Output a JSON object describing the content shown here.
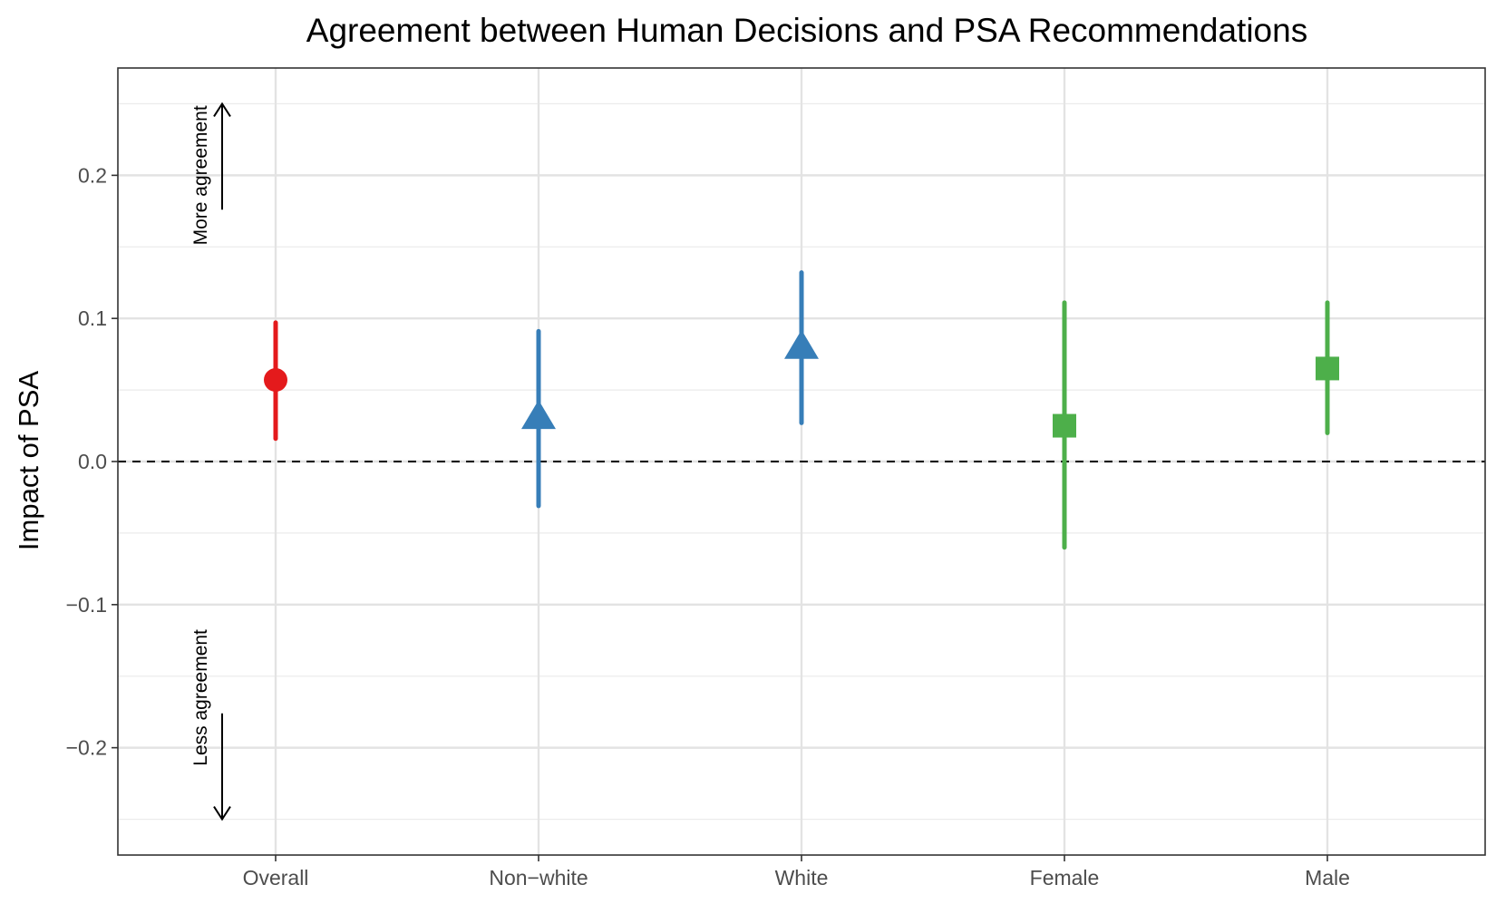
{
  "chart_data": {
    "type": "scatter",
    "subtype": "point-range",
    "title": "Agreement between Human Decisions and PSA Recommendations",
    "xlabel": "",
    "ylabel": "Impact of PSA",
    "ylim": [
      -0.275,
      0.275
    ],
    "yticks": [
      -0.2,
      -0.1,
      0.0,
      0.1,
      0.2
    ],
    "ytick_labels": [
      "−0.2",
      "−0.1",
      "0.0",
      "0.1",
      "0.2"
    ],
    "grid": true,
    "reference_line": {
      "y": 0.0,
      "style": "dashed"
    },
    "categories": [
      "Overall",
      "Non−white",
      "White",
      "Female",
      "Male"
    ],
    "points": [
      {
        "category": "Overall",
        "estimate": 0.057,
        "lower": 0.016,
        "upper": 0.097,
        "shape": "circle",
        "color": "#e41a1c"
      },
      {
        "category": "Non−white",
        "estimate": 0.031,
        "lower": -0.031,
        "upper": 0.091,
        "shape": "triangle",
        "color": "#377eb8"
      },
      {
        "category": "White",
        "estimate": 0.08,
        "lower": 0.027,
        "upper": 0.132,
        "shape": "triangle",
        "color": "#377eb8"
      },
      {
        "category": "Female",
        "estimate": 0.025,
        "lower": -0.06,
        "upper": 0.111,
        "shape": "square",
        "color": "#4daf4a"
      },
      {
        "category": "Male",
        "estimate": 0.065,
        "lower": 0.02,
        "upper": 0.111,
        "shape": "square",
        "color": "#4daf4a"
      }
    ],
    "annotations": [
      {
        "text": "More agreement",
        "direction": "up"
      },
      {
        "text": "Less agreement",
        "direction": "down"
      }
    ]
  }
}
